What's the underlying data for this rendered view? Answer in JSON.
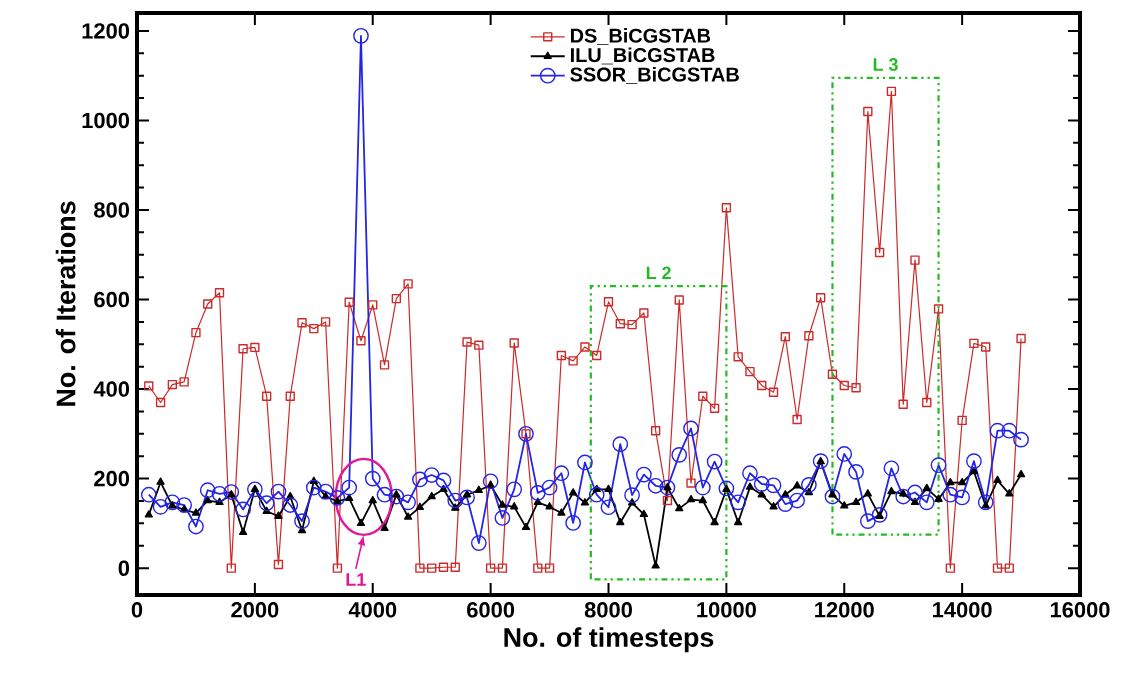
{
  "chart_data": {
    "type": "line",
    "xlabel": "No. of timesteps",
    "ylabel": "No. of Iterations",
    "x": [
      200,
      400,
      600,
      800,
      1000,
      1200,
      1400,
      1600,
      1800,
      2000,
      2200,
      2400,
      2600,
      2800,
      3000,
      3200,
      3400,
      3600,
      3800,
      4000,
      4200,
      4400,
      4600,
      4800,
      5000,
      5200,
      5400,
      5600,
      5800,
      6000,
      6200,
      6400,
      6600,
      6800,
      7000,
      7200,
      7400,
      7600,
      7800,
      8000,
      8200,
      8400,
      8600,
      8800,
      9000,
      9200,
      9400,
      9600,
      9800,
      10000,
      10200,
      10400,
      10600,
      10800,
      11000,
      11200,
      11400,
      11600,
      11800,
      12000,
      12200,
      12400,
      12600,
      12800,
      13000,
      13200,
      13400,
      13600,
      13800,
      14000,
      14200,
      14400,
      14600,
      14800,
      15000
    ],
    "series": [
      {
        "name": "DS_BiCGSTAB",
        "color": "#cc2a2a",
        "marker": "square",
        "values": [
          407,
          370,
          410,
          416,
          526,
          590,
          615,
          0,
          490,
          493,
          384,
          8,
          384,
          548,
          535,
          550,
          0,
          594,
          508,
          588,
          454,
          602,
          635,
          0,
          0,
          2,
          2,
          505,
          498,
          0,
          0,
          503,
          300,
          0,
          0,
          475,
          463,
          494,
          475,
          595,
          546,
          544,
          570,
          307,
          151,
          599,
          190,
          384,
          357,
          805,
          472,
          439,
          408,
          393,
          517,
          332,
          519,
          604,
          433,
          408,
          403,
          1020,
          705,
          1065,
          366,
          688,
          370,
          579,
          0,
          330,
          502,
          494,
          0,
          0,
          513
        ]
      },
      {
        "name": "ILU_BiCGSTAB",
        "color": "#000000",
        "marker": "triangle",
        "values": [
          119,
          192,
          139,
          131,
          123,
          151,
          147,
          164,
          80,
          176,
          127,
          116,
          160,
          84,
          194,
          160,
          149,
          156,
          100,
          151,
          89,
          164,
          114,
          136,
          160,
          176,
          134,
          164,
          174,
          185,
          141,
          137,
          91,
          147,
          137,
          123,
          168,
          146,
          176,
          176,
          102,
          146,
          120,
          5,
          180,
          133,
          153,
          151,
          102,
          176,
          102,
          181,
          164,
          137,
          164,
          184,
          169,
          238,
          164,
          139,
          147,
          166,
          116,
          171,
          166,
          147,
          178,
          154,
          191,
          191,
          216,
          139,
          196,
          166,
          209
        ]
      },
      {
        "name": "SSOR_BiCGSTAB",
        "color": "#2424e6",
        "marker": "circle",
        "values": [
          164,
          137,
          147,
          141,
          93,
          174,
          166,
          170,
          131,
          176,
          145,
          171,
          141,
          105,
          180,
          171,
          157,
          180,
          1189,
          200,
          164,
          160,
          147,
          198,
          208,
          196,
          151,
          158,
          56,
          194,
          112,
          176,
          300,
          168,
          180,
          212,
          101,
          236,
          164,
          136,
          277,
          163,
          209,
          184,
          180,
          253,
          312,
          180,
          238,
          178,
          147,
          212,
          188,
          185,
          143,
          151,
          186,
          239,
          160,
          255,
          215,
          105,
          119,
          223,
          160,
          169,
          147,
          230,
          164,
          158,
          239,
          147,
          307,
          307,
          287
        ]
      }
    ],
    "xlim": [
      0,
      16000
    ],
    "ylim": [
      -60,
      1240
    ],
    "xticks": [
      0,
      2000,
      4000,
      6000,
      8000,
      10000,
      12000,
      14000,
      16000
    ],
    "yticks": [
      0,
      200,
      400,
      600,
      800,
      1000,
      1200
    ],
    "legend": "top",
    "annotations": [
      "L1",
      "L 2",
      "L 3"
    ]
  }
}
